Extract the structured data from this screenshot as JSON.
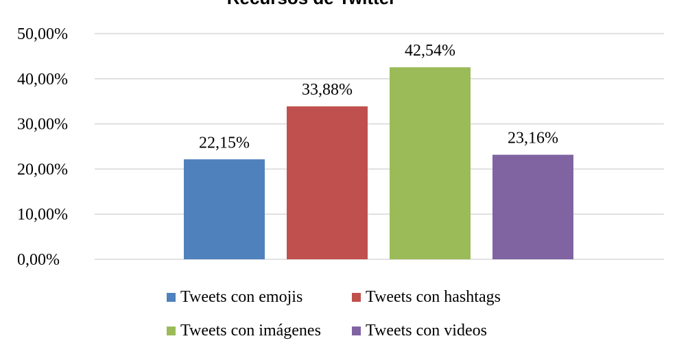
{
  "chart_data": {
    "type": "bar",
    "title": "Recursos de Twitter",
    "series": [
      {
        "name": "Tweets con emojis",
        "value": 22.15,
        "label": "22,15%",
        "color": "#4f81bd"
      },
      {
        "name": "Tweets con hashtags",
        "value": 33.88,
        "label": "33,88%",
        "color": "#c0504d"
      },
      {
        "name": "Tweets con imágenes",
        "value": 42.54,
        "label": "42,54%",
        "color": "#9bbb59"
      },
      {
        "name": "Tweets con videos",
        "value": 23.16,
        "label": "23,16%",
        "color": "#8064a2"
      }
    ],
    "ylim": [
      0,
      50
    ],
    "yticks": [
      {
        "value": 0,
        "label": "0,00%"
      },
      {
        "value": 10,
        "label": "10,00%"
      },
      {
        "value": 20,
        "label": "20,00%"
      },
      {
        "value": 30,
        "label": "30,00%"
      },
      {
        "value": 40,
        "label": "40,00%"
      },
      {
        "value": 50,
        "label": "50,00%"
      }
    ],
    "grid": true,
    "legend_position": "bottom",
    "xlabel": "",
    "ylabel": ""
  }
}
